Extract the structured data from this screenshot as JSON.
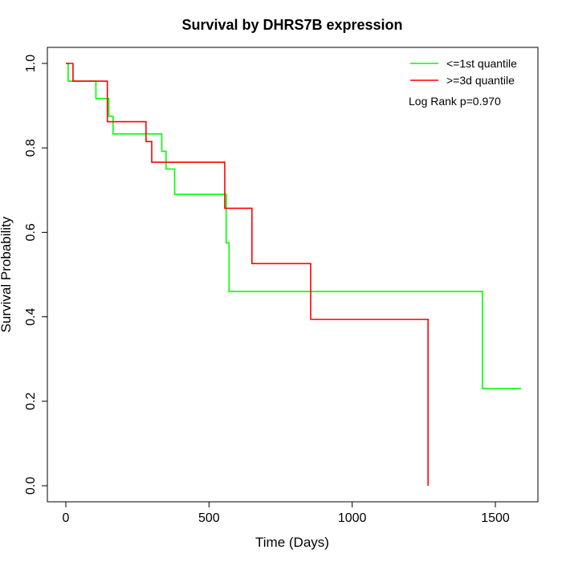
{
  "chart_data": {
    "type": "line",
    "title": "Survival by DHRS7B expression",
    "xlabel": "Time (Days)",
    "ylabel": "Survival Probability",
    "xlim": [
      0,
      1600
    ],
    "ylim": [
      0,
      1.0
    ],
    "x_ticks": [
      0,
      500,
      1000,
      1500
    ],
    "x_tick_labels": [
      "0",
      "500",
      "1000",
      "1500"
    ],
    "y_ticks": [
      0.0,
      0.2,
      0.4,
      0.6,
      0.8,
      1.0
    ],
    "y_tick_labels": [
      "0.0",
      "0.2",
      "0.4",
      "0.6",
      "0.8",
      "1.0"
    ],
    "grid": false,
    "legend_position": "top-right",
    "annotation": "Log Rank p=0.970",
    "series": [
      {
        "name": "<=1st quantile",
        "color": "#00ff00",
        "step": true,
        "x": [
          0,
          8,
          105,
          150,
          165,
          180,
          335,
          350,
          380,
          555,
          560,
          570,
          1455,
          1590
        ],
        "y": [
          1.0,
          0.958,
          0.917,
          0.875,
          0.833,
          0.833,
          0.792,
          0.75,
          0.69,
          0.69,
          0.575,
          0.46,
          0.23,
          0.23
        ]
      },
      {
        "name": ">=3d quantile",
        "color": "#ff0000",
        "step": true,
        "x": [
          0,
          25,
          130,
          145,
          280,
          300,
          555,
          650,
          855,
          1265,
          1265
        ],
        "y": [
          1.0,
          0.958,
          0.958,
          0.862,
          0.815,
          0.766,
          0.657,
          0.526,
          0.394,
          0.394,
          0.0
        ]
      }
    ]
  }
}
